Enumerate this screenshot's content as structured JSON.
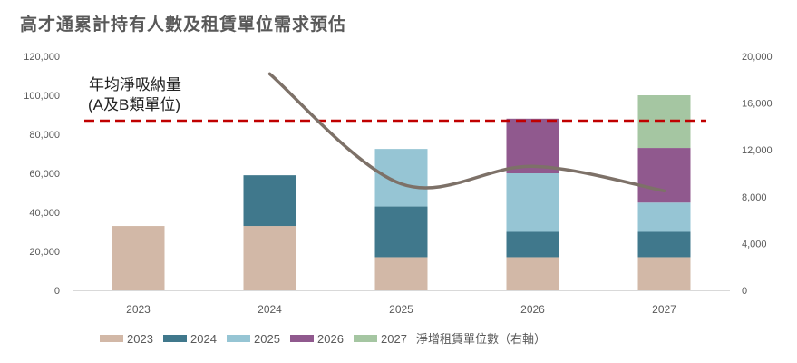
{
  "title": "高才通累計持有人數及租賃單位需求預估",
  "chart_data": {
    "type": "bar",
    "stacked": true,
    "title": "高才通累計持有人數及租賃單位需求預估",
    "categories": [
      "2023",
      "2024",
      "2025",
      "2026",
      "2027"
    ],
    "series": [
      {
        "name": "2023",
        "color": "#D2B8A7",
        "values": [
          33000,
          33000,
          17000,
          17000,
          17000
        ]
      },
      {
        "name": "2024",
        "color": "#40788C",
        "values": [
          0,
          26000,
          26000,
          13000,
          13000
        ]
      },
      {
        "name": "2025",
        "color": "#96C5D4",
        "values": [
          0,
          0,
          29500,
          30000,
          15000
        ]
      },
      {
        "name": "2026",
        "color": "#90598E",
        "values": [
          0,
          0,
          0,
          28000,
          28000
        ]
      },
      {
        "name": "2027",
        "color": "#A5C6A2",
        "values": [
          0,
          0,
          0,
          0,
          27000
        ]
      }
    ],
    "line_series": {
      "name": "淨增租賃單位數（右軸）",
      "color": "#7D7168",
      "axis": "right",
      "x_offset_start": 1,
      "values": [
        null,
        18500,
        9100,
        10600,
        8500
      ]
    },
    "reference_line": {
      "label_line1": "年均淨吸納量",
      "label_line2": "(A及B類單位)",
      "value": 87000,
      "color": "#C00000",
      "style": "dashed"
    },
    "left_axis": {
      "ylim": [
        0,
        120000
      ],
      "ticks": [
        "0",
        "20,000",
        "40,000",
        "60,000",
        "80,000",
        "100,000",
        "120,000"
      ]
    },
    "right_axis": {
      "ylim": [
        0,
        20000
      ],
      "ticks": [
        "0",
        "4,000",
        "8,000",
        "12,000",
        "16,000",
        "20,000"
      ]
    },
    "legend": "bottom",
    "grid": false
  }
}
